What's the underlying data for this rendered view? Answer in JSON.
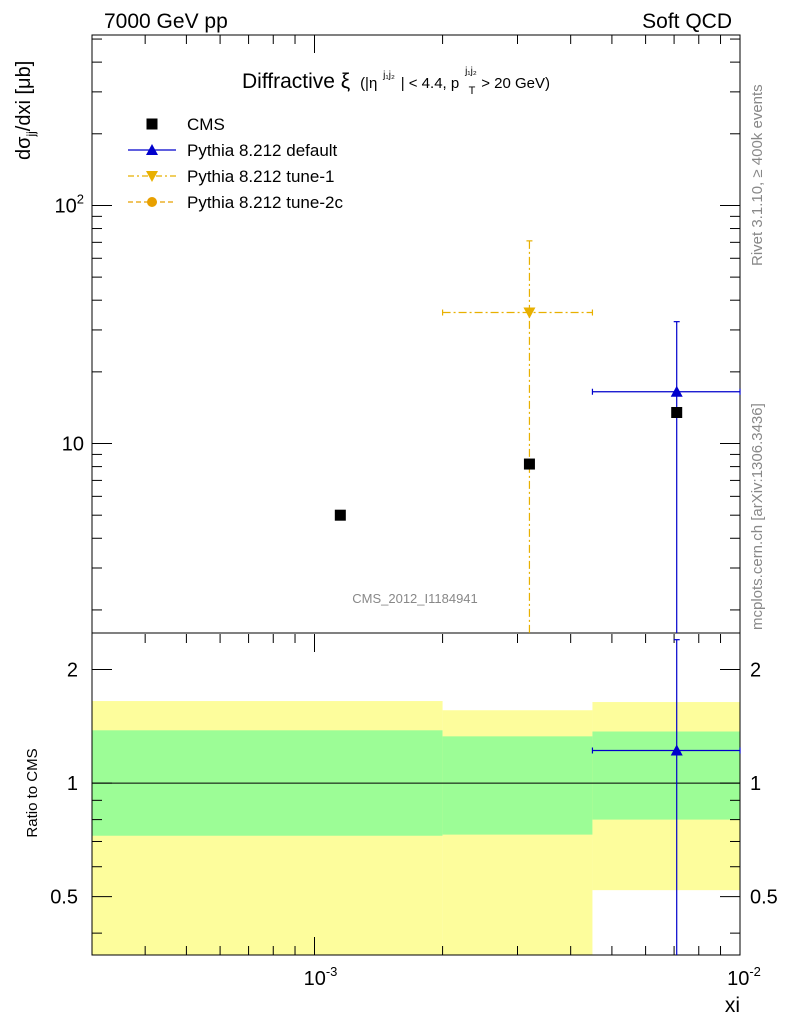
{
  "header": {
    "left": "7000 GeV pp",
    "right": "Soft QCD"
  },
  "title": {
    "main": "Diffractive ξ",
    "cut_eta": "(|η",
    "cut_eta_sup": "j₁j₂",
    "cut_eta_rest": "| < 4.4, p",
    "cut_pt_sub": "T",
    "cut_pt_sup": "j₁j₂",
    "cut_pt_rest": " > 20 GeV)"
  },
  "side_labels": {
    "rivet": "Rivet 3.1.10, ≥ 400k events",
    "source": "mcplots.cern.ch [arXiv:1306.3436]"
  },
  "analysis_id": "CMS_2012_I1184941",
  "legend": [
    {
      "label": "CMS",
      "marker": "square",
      "color": "#000000",
      "line": "none"
    },
    {
      "label": "Pythia 8.212 default",
      "marker": "triangle-up",
      "color": "#0000cc",
      "line": "solid"
    },
    {
      "label": "Pythia 8.212 tune-1",
      "marker": "triangle-down",
      "color": "#e8b000",
      "line": "dashdot"
    },
    {
      "label": "Pythia 8.212 tune-2c",
      "marker": "circle",
      "color": "#e8a000",
      "line": "dashed"
    }
  ],
  "main_ylabel": "dσjj/dxi [μb]",
  "ratio_ylabel": "Ratio to CMS",
  "xlabel": "xi",
  "chart_data": [
    {
      "type": "scatter",
      "panel": "main",
      "x_scale": "log",
      "y_scale": "log",
      "xlim": [
        0.0003,
        0.01
      ],
      "ylim": [
        1.6,
        520
      ],
      "x_ticklabels": [
        "10^-3",
        "10^-2"
      ],
      "y_ticklabels": [
        "10",
        "10^2"
      ],
      "series": [
        {
          "name": "CMS",
          "points": [
            {
              "x": 0.00115,
              "y": 5.0
            },
            {
              "x": 0.0032,
              "y": 8.2
            },
            {
              "x": 0.0071,
              "y": 13.5
            }
          ]
        },
        {
          "name": "Pythia 8.212 default",
          "points": [
            {
              "x": 0.0071,
              "y": 16.5,
              "xlo": 0.0045,
              "xhi": 0.01,
              "ylo": 1.6,
              "yhi": 32.5
            }
          ]
        },
        {
          "name": "Pythia 8.212 tune-1",
          "points": [
            {
              "x": 0.0032,
              "y": 35.5,
              "xlo": 0.002,
              "xhi": 0.0045,
              "ylo": 1.6,
              "yhi": 71.0
            }
          ]
        },
        {
          "name": "Pythia 8.212 tune-2c",
          "points": []
        }
      ]
    },
    {
      "type": "area",
      "panel": "ratio",
      "x_scale": "log",
      "y_scale": "log",
      "xlim": [
        0.0003,
        0.01
      ],
      "ylim": [
        0.35,
        2.5
      ],
      "y_ticklabels": [
        "0.5",
        "1",
        "2"
      ],
      "bands": [
        {
          "xlo": 0.0003,
          "xhi": 0.002,
          "inner": [
            0.725,
            1.38
          ],
          "outer": [
            0.35,
            1.65
          ]
        },
        {
          "xlo": 0.002,
          "xhi": 0.0045,
          "inner": [
            0.73,
            1.33
          ],
          "outer": [
            0.35,
            1.56
          ]
        },
        {
          "xlo": 0.0045,
          "xhi": 0.01,
          "inner": [
            0.8,
            1.37
          ],
          "outer": [
            0.52,
            1.64
          ]
        }
      ],
      "series": [
        {
          "name": "Pythia 8.212 default",
          "points": [
            {
              "x": 0.0071,
              "y": 1.22,
              "xlo": 0.0045,
              "xhi": 0.01,
              "ylo": 0.35,
              "yhi": 2.4
            }
          ]
        }
      ]
    }
  ],
  "colors": {
    "band_inner": "#9cfd96",
    "band_outer": "#fdfd9c",
    "default": "#0000cc",
    "tune1": "#e8b000",
    "text_grey": "#888888"
  }
}
